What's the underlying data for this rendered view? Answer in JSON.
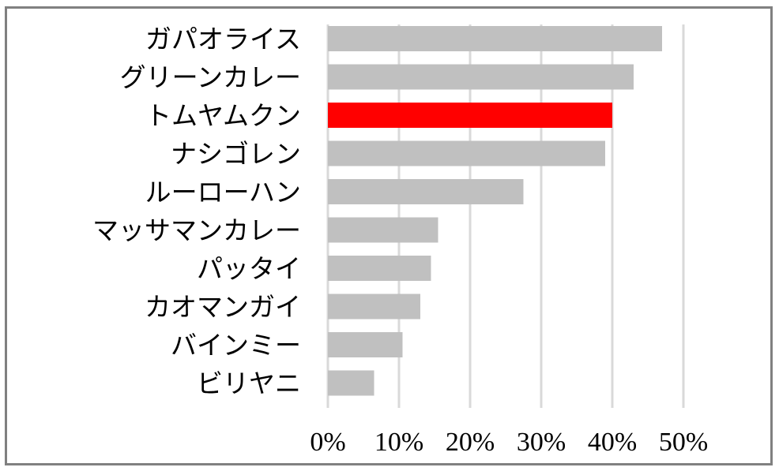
{
  "chart_data": {
    "type": "bar",
    "orientation": "horizontal",
    "categories": [
      "ガパオライス",
      "グリーンカレー",
      "トムヤムクン",
      "ナシゴレン",
      "ルーローハン",
      "マッサマンカレー",
      "パッタイ",
      "カオマンガイ",
      "バインミー",
      "ビリヤニ"
    ],
    "values": [
      47,
      43,
      40,
      39,
      27.5,
      15.5,
      14.5,
      13,
      10.5,
      6.5
    ],
    "unit": "%",
    "xlim": [
      0,
      50
    ],
    "x_ticks": [
      "0%",
      "10%",
      "20%",
      "30%",
      "40%",
      "50%"
    ],
    "grid": "vertical",
    "highlight_index": 2,
    "colors": {
      "bar": "#c0c0c0",
      "highlight": "#ff0000",
      "grid": "#d9d9d9",
      "border": "#808080"
    },
    "title": "",
    "xlabel": "",
    "ylabel": ""
  }
}
